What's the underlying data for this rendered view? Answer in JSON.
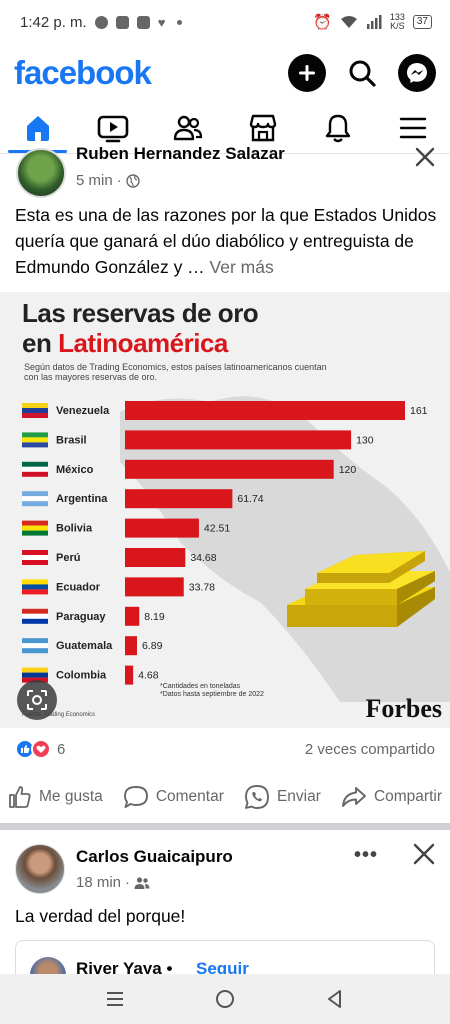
{
  "status_bar": {
    "time": "1:42 p. m.",
    "speed_value": "133",
    "speed_unit": "K/S",
    "battery": "37"
  },
  "header": {
    "logo": "facebook",
    "actions": [
      "plus-icon",
      "search-icon",
      "messenger-icon"
    ]
  },
  "tabs": [
    "home-icon",
    "video-icon",
    "friends-icon",
    "marketplace-icon",
    "notifications-icon",
    "menu-icon"
  ],
  "post1": {
    "author": "Ruben Hernandez Salazar",
    "time": "5 min",
    "text": "Esta es una de las razones por la que Estados Unidos quería que ganará el dúo diabólico y entreguista de Edmundo González y … ",
    "see_more": "Ver más",
    "infographic": {
      "title_line1": "Las reservas de oro",
      "title_line2_prefix": "en ",
      "title_line2_highlight": "Latinoamérica",
      "subtitle": "Según datos de Trading Economics, estos países latinoamericanos cuentan con las mayores reservas de oro.",
      "note_line1": "*Cantidades en toneladas",
      "note_line2": "*Datos hasta septiembre de 2022",
      "source": "Fuente: Trading Economics",
      "brand": "Forbes"
    },
    "reaction_count": "6",
    "shares": "2 veces compartido",
    "actions": {
      "like": "Me gusta",
      "comment": "Comentar",
      "send": "Enviar",
      "share": "Compartir"
    }
  },
  "post2": {
    "author": "Carlos Guaicaipuro",
    "time": "18 min",
    "text": "La verdad del porque!",
    "shared_author": "River Yaya",
    "separator": "•",
    "follow": "Seguir"
  },
  "chart_data": {
    "type": "bar",
    "orientation": "horizontal",
    "title": "Las reservas de oro en Latinoamérica",
    "categories": [
      "Venezuela",
      "Brasil",
      "México",
      "Argentina",
      "Bolivia",
      "Perú",
      "Ecuador",
      "Paraguay",
      "Guatemala",
      "Colombia"
    ],
    "values": [
      161,
      130,
      120,
      61.74,
      42.51,
      34.68,
      33.78,
      8.19,
      6.89,
      4.68
    ],
    "value_labels": [
      "161",
      "130",
      "120",
      "61.74",
      "42.51",
      "34.68",
      "33.78",
      "8.19",
      "6.89",
      "4.68"
    ],
    "flag_colors": [
      [
        "#f7d117",
        "#1f3f99",
        "#cf142b"
      ],
      [
        "#229e45",
        "#f8e509",
        "#2b49a3"
      ],
      [
        "#006847",
        "#ffffff",
        "#ce1126"
      ],
      [
        "#74acdf",
        "#ffffff",
        "#74acdf"
      ],
      [
        "#d52b1e",
        "#f9e300",
        "#007934"
      ],
      [
        "#d91023",
        "#ffffff",
        "#d91023"
      ],
      [
        "#ffdd00",
        "#034ea2",
        "#ed1c24"
      ],
      [
        "#d52b1e",
        "#ffffff",
        "#0038a8"
      ],
      [
        "#4997d0",
        "#ffffff",
        "#4997d0"
      ],
      [
        "#fcd116",
        "#003893",
        "#ce1126"
      ]
    ],
    "bar_color": "#d8161b",
    "xlim": [
      0,
      161
    ]
  }
}
